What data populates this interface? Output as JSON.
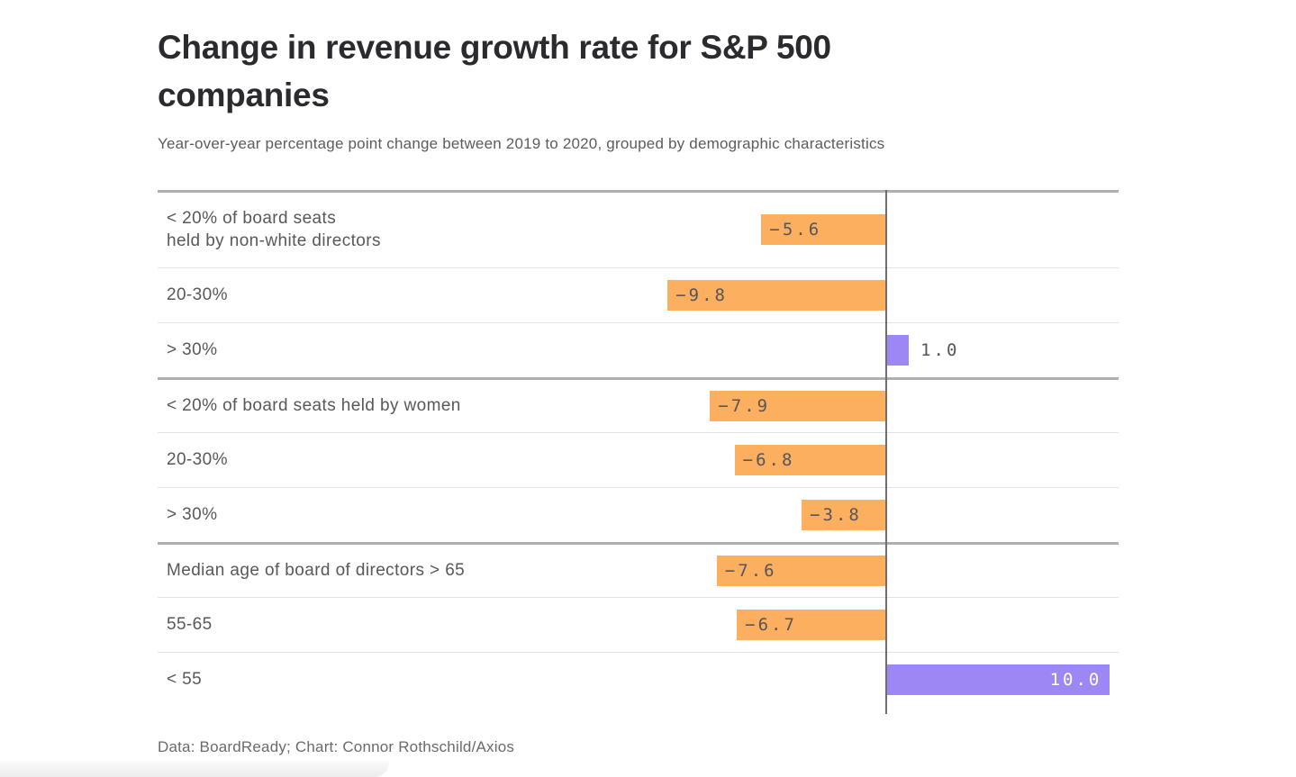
{
  "page": {
    "title": "Change in revenue growth rate for S&P 500 companies",
    "subtitle": "Year-over-year percentage point change between 2019 to 2020, grouped by demographic characteristics",
    "footer": "Data: BoardReady; Chart: Connor Rothschild/Axios"
  },
  "chart_data": {
    "type": "bar",
    "orientation": "horizontal",
    "title": "Change in revenue growth rate for S&P 500 companies",
    "subtitle": "Year-over-year percentage point change between 2019 to 2020, grouped by demographic characteristics",
    "unit": "percentage points",
    "xlim": [
      -10.5,
      10.5
    ],
    "grid": "row-separators-only",
    "legend": "none",
    "colors": {
      "negative_bar": "#fbaf5f",
      "positive_bar": "#9d87f5",
      "value_label_dark": "#56565a",
      "value_label_light": "#ffffff",
      "zero_line": "#6e6e70"
    },
    "groups": [
      {
        "rows": [
          {
            "label_lines": [
              "< 20% of board seats",
              "held by non-white directors"
            ],
            "value": -5.6,
            "value_label": "−5.6",
            "label_placement": "inside-start",
            "tall": true
          },
          {
            "label_lines": [
              "20-30%"
            ],
            "value": -9.8,
            "value_label": "−9.8",
            "label_placement": "inside-start"
          },
          {
            "label_lines": [
              "> 30%"
            ],
            "value": 1.0,
            "value_label": "1.0",
            "label_placement": "outside-end"
          }
        ]
      },
      {
        "rows": [
          {
            "label_lines": [
              "< 20% of board seats held by women"
            ],
            "value": -7.9,
            "value_label": "−7.9",
            "label_placement": "inside-start"
          },
          {
            "label_lines": [
              "20-30%"
            ],
            "value": -6.8,
            "value_label": "−6.8",
            "label_placement": "inside-start"
          },
          {
            "label_lines": [
              "> 30%"
            ],
            "value": -3.8,
            "value_label": "−3.8",
            "label_placement": "inside-start"
          }
        ]
      },
      {
        "rows": [
          {
            "label_lines": [
              "Median age of board of directors > 65"
            ],
            "value": -7.6,
            "value_label": "−7.6",
            "label_placement": "inside-start"
          },
          {
            "label_lines": [
              "55-65"
            ],
            "value": -6.7,
            "value_label": "−6.7",
            "label_placement": "inside-start"
          },
          {
            "label_lines": [
              "< 55"
            ],
            "value": 10.0,
            "value_label": "10.0",
            "label_placement": "inside-end"
          }
        ]
      }
    ]
  }
}
